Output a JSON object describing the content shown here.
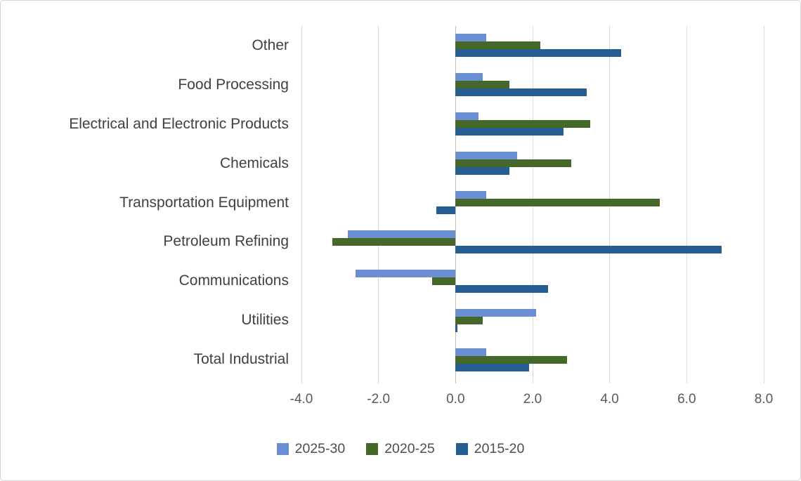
{
  "chart_data": {
    "type": "bar",
    "orientation": "horizontal",
    "title": "",
    "categories": [
      "Other",
      "Food Processing",
      "Electrical and Electronic Products",
      "Chemicals",
      "Transportation Equipment",
      "Petroleum Refining",
      "Communications",
      "Utilities",
      "Total Industrial"
    ],
    "series": [
      {
        "name": "2025-30",
        "color": "#6C8ED3",
        "values": [
          0.8,
          0.7,
          0.6,
          1.6,
          0.8,
          -2.8,
          -2.6,
          2.1,
          0.8
        ]
      },
      {
        "name": "2020-25",
        "color": "#45682A",
        "values": [
          2.2,
          1.4,
          3.5,
          3.0,
          5.3,
          -3.2,
          -0.6,
          0.7,
          2.9
        ]
      },
      {
        "name": "2015-20",
        "color": "#255E91",
        "values": [
          4.3,
          3.4,
          2.8,
          1.4,
          -0.5,
          6.9,
          2.4,
          0.05,
          1.9
        ]
      }
    ],
    "x_axis": {
      "min": -4,
      "max": 8,
      "tick_step": 2,
      "tick_values": [
        -4,
        -2,
        0,
        2,
        4,
        6,
        8
      ],
      "tick_labels": [
        "-4.0",
        "-2.0",
        "0.0",
        "2.0",
        "4.0",
        "6.0",
        "8.0"
      ]
    },
    "grid": "vertical",
    "legend_position": "bottom",
    "colors": {
      "gridline": "#D9D9D9",
      "zero_axis_line": "#BFBFBF",
      "tick_text": "#595959",
      "category_text": "#404040",
      "background": "#FFFFFF",
      "frame_border": "#D5D5D5"
    }
  }
}
